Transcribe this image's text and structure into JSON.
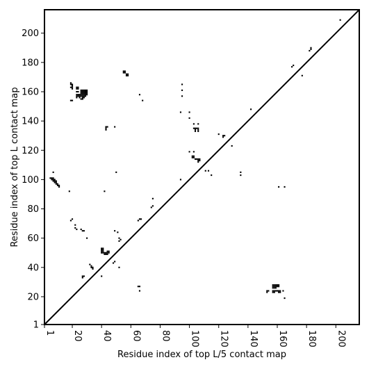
{
  "chart_data": {
    "type": "scatter",
    "title": "",
    "xlabel": "Residue index of top L/5 contact map",
    "ylabel": "Residue index of top L contact map",
    "xlim": [
      1,
      216
    ],
    "ylim": [
      1,
      216
    ],
    "x_ticks": [
      1,
      20,
      40,
      60,
      80,
      100,
      120,
      140,
      160,
      180,
      200
    ],
    "y_ticks": [
      1,
      20,
      40,
      60,
      80,
      100,
      120,
      140,
      160,
      180,
      200
    ],
    "grid": false,
    "diagonal": true,
    "marker_color": "#000000",
    "points": [
      [
        5,
        101
      ],
      [
        6,
        101
      ],
      [
        7,
        101
      ],
      [
        6,
        100
      ],
      [
        7,
        100
      ],
      [
        8,
        100
      ],
      [
        7,
        99
      ],
      [
        8,
        99
      ],
      [
        9,
        99
      ],
      [
        8,
        98
      ],
      [
        9,
        98
      ],
      [
        10,
        97
      ],
      [
        9,
        97
      ],
      [
        10,
        96
      ],
      [
        11,
        96
      ],
      [
        11,
        95
      ],
      [
        7,
        105
      ],
      [
        18,
        92
      ],
      [
        19,
        165
      ],
      [
        20,
        165
      ],
      [
        19,
        166
      ],
      [
        20,
        164
      ],
      [
        19,
        163
      ],
      [
        20,
        163
      ],
      [
        20,
        162
      ],
      [
        19,
        154
      ],
      [
        20,
        154
      ],
      [
        23,
        163
      ],
      [
        24,
        163
      ],
      [
        23,
        162
      ],
      [
        24,
        162
      ],
      [
        23,
        160
      ],
      [
        24,
        160
      ],
      [
        23,
        158
      ],
      [
        24,
        158
      ],
      [
        25,
        158
      ],
      [
        23,
        157
      ],
      [
        24,
        157
      ],
      [
        25,
        157
      ],
      [
        23,
        156
      ],
      [
        25,
        156
      ],
      [
        26,
        161
      ],
      [
        27,
        161
      ],
      [
        28,
        161
      ],
      [
        29,
        161
      ],
      [
        30,
        161
      ],
      [
        26,
        160
      ],
      [
        27,
        160
      ],
      [
        28,
        160
      ],
      [
        29,
        160
      ],
      [
        30,
        160
      ],
      [
        26,
        159
      ],
      [
        27,
        159
      ],
      [
        28,
        159
      ],
      [
        29,
        159
      ],
      [
        30,
        159
      ],
      [
        26,
        158
      ],
      [
        27,
        158
      ],
      [
        28,
        158
      ],
      [
        29,
        158
      ],
      [
        30,
        158
      ],
      [
        26,
        157
      ],
      [
        27,
        157
      ],
      [
        28,
        157
      ],
      [
        29,
        157
      ],
      [
        27,
        156
      ],
      [
        28,
        156
      ],
      [
        26,
        155
      ],
      [
        27,
        155
      ],
      [
        55,
        174
      ],
      [
        56,
        174
      ],
      [
        55,
        173
      ],
      [
        56,
        173
      ],
      [
        57,
        172
      ],
      [
        58,
        172
      ],
      [
        57,
        171
      ],
      [
        58,
        171
      ],
      [
        66,
        158
      ],
      [
        68,
        154
      ],
      [
        43,
        136
      ],
      [
        44,
        136
      ],
      [
        43,
        135
      ],
      [
        43,
        134
      ],
      [
        49,
        136
      ],
      [
        95,
        165
      ],
      [
        95,
        161
      ],
      [
        95,
        157
      ],
      [
        94,
        146
      ],
      [
        100,
        146
      ],
      [
        100,
        142
      ],
      [
        103,
        138
      ],
      [
        106,
        138
      ],
      [
        103,
        135
      ],
      [
        104,
        135
      ],
      [
        105,
        135
      ],
      [
        106,
        135
      ],
      [
        104,
        134
      ],
      [
        106,
        134
      ],
      [
        104,
        133
      ],
      [
        106,
        133
      ],
      [
        142,
        148
      ],
      [
        120,
        131
      ],
      [
        123,
        130
      ],
      [
        124,
        130
      ],
      [
        123,
        129
      ],
      [
        129,
        123
      ],
      [
        100,
        119
      ],
      [
        103,
        119
      ],
      [
        102,
        116
      ],
      [
        103,
        116
      ],
      [
        102,
        115
      ],
      [
        103,
        115
      ],
      [
        104,
        114
      ],
      [
        105,
        114
      ],
      [
        106,
        114
      ],
      [
        107,
        114
      ],
      [
        106,
        113
      ],
      [
        107,
        113
      ],
      [
        106,
        112
      ],
      [
        111,
        106
      ],
      [
        113,
        106
      ],
      [
        115,
        103
      ],
      [
        135,
        105
      ],
      [
        135,
        103
      ],
      [
        94,
        100
      ],
      [
        50,
        105
      ],
      [
        42,
        92
      ],
      [
        161,
        95
      ],
      [
        165,
        95
      ],
      [
        170,
        177
      ],
      [
        171,
        178
      ],
      [
        177,
        171
      ],
      [
        182,
        188
      ],
      [
        183,
        189
      ],
      [
        183,
        190
      ],
      [
        203,
        209
      ],
      [
        19,
        72
      ],
      [
        20,
        73
      ],
      [
        22,
        69
      ],
      [
        22,
        67
      ],
      [
        23,
        66
      ],
      [
        26,
        66
      ],
      [
        27,
        65
      ],
      [
        28,
        65
      ],
      [
        30,
        60
      ],
      [
        49,
        65
      ],
      [
        51,
        64
      ],
      [
        52,
        60
      ],
      [
        53,
        59
      ],
      [
        52,
        58
      ],
      [
        65,
        72
      ],
      [
        66,
        73
      ],
      [
        67,
        73
      ],
      [
        75,
        87
      ],
      [
        75,
        82
      ],
      [
        74,
        81
      ],
      [
        40,
        53
      ],
      [
        41,
        53
      ],
      [
        40,
        52
      ],
      [
        41,
        52
      ],
      [
        40,
        51
      ],
      [
        41,
        51
      ],
      [
        40,
        50
      ],
      [
        41,
        50
      ],
      [
        42,
        50
      ],
      [
        43,
        50
      ],
      [
        42,
        49
      ],
      [
        43,
        49
      ],
      [
        44,
        49
      ],
      [
        44,
        51
      ],
      [
        45,
        51
      ],
      [
        44,
        50
      ],
      [
        45,
        50
      ],
      [
        49,
        44
      ],
      [
        48,
        43
      ],
      [
        52,
        40
      ],
      [
        32,
        42
      ],
      [
        33,
        41
      ],
      [
        34,
        40
      ],
      [
        33,
        40
      ],
      [
        34,
        39
      ],
      [
        27,
        34
      ],
      [
        28,
        34
      ],
      [
        27,
        33
      ],
      [
        40,
        34
      ],
      [
        65,
        27
      ],
      [
        66,
        27
      ],
      [
        66,
        24
      ],
      [
        157,
        28
      ],
      [
        158,
        28
      ],
      [
        159,
        28
      ],
      [
        160,
        28
      ],
      [
        161,
        28
      ],
      [
        157,
        27
      ],
      [
        158,
        27
      ],
      [
        159,
        27
      ],
      [
        160,
        27
      ],
      [
        161,
        27
      ],
      [
        157,
        26
      ],
      [
        158,
        26
      ],
      [
        159,
        26
      ],
      [
        153,
        24
      ],
      [
        154,
        24
      ],
      [
        157,
        24
      ],
      [
        158,
        24
      ],
      [
        159,
        24
      ],
      [
        160,
        24
      ],
      [
        161,
        24
      ],
      [
        162,
        24
      ],
      [
        164,
        24
      ],
      [
        153,
        23
      ],
      [
        157,
        23
      ],
      [
        158,
        23
      ],
      [
        161,
        23
      ],
      [
        162,
        23
      ],
      [
        165,
        19
      ]
    ]
  }
}
